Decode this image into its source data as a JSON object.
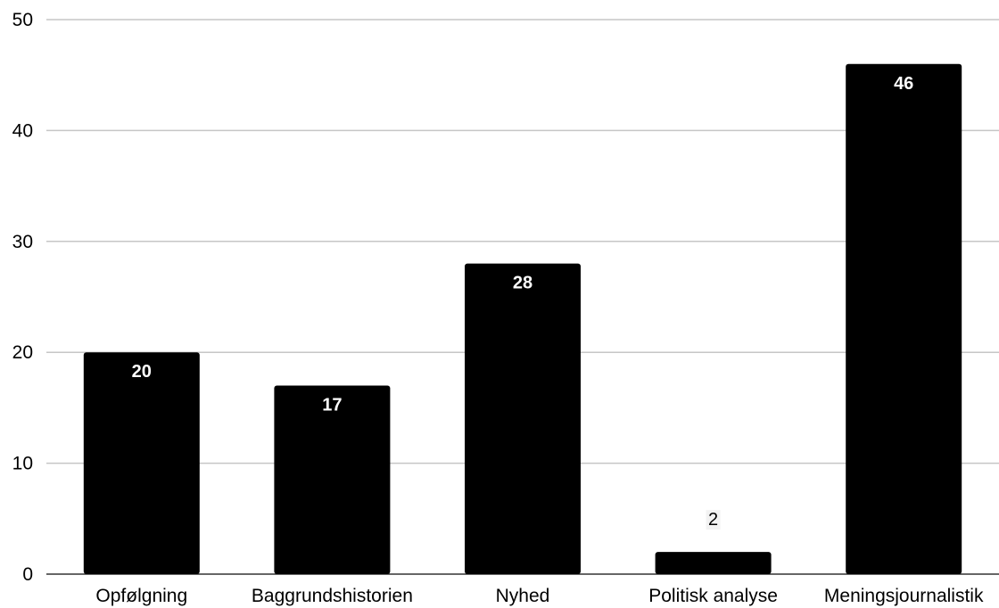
{
  "chart_data": {
    "type": "bar",
    "title": "",
    "xlabel": "",
    "ylabel": "",
    "categories": [
      "Opfølgning",
      "Baggrundshistorien",
      "Nyhed",
      "Politisk analyse",
      "Meningsjournalistik"
    ],
    "values": [
      20,
      17,
      28,
      2,
      46
    ],
    "data_labels": [
      "20",
      "17",
      "28",
      "2",
      "46"
    ],
    "ylim": [
      0,
      50
    ],
    "yticks": [
      0,
      10,
      20,
      30,
      40,
      50
    ],
    "grid": true,
    "legend": "none",
    "colors": {
      "bar": "#000000",
      "grid": "#c6c6c6",
      "label_inside": "#ffffff",
      "label_outside": "#000000"
    }
  }
}
